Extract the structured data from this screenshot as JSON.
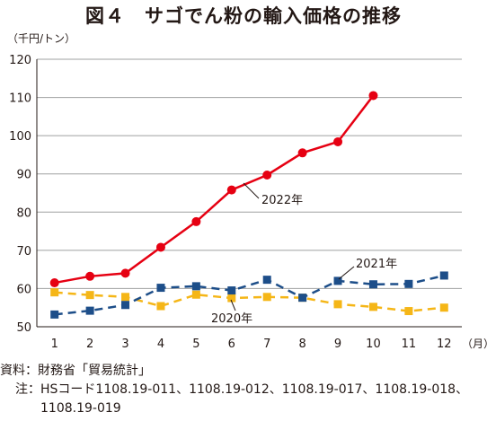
{
  "title": "図４　サゴでん粉の輸入価格の推移",
  "chart_data": {
    "type": "line",
    "y_unit": "（千円/トン）",
    "x_unit": "（月）",
    "categories": [
      "1",
      "2",
      "3",
      "4",
      "5",
      "6",
      "7",
      "8",
      "9",
      "10",
      "11",
      "12"
    ],
    "ylim": [
      50,
      120
    ],
    "yticks": [
      50,
      60,
      70,
      80,
      90,
      100,
      110,
      120
    ],
    "grid": true,
    "series": [
      {
        "name": "2022年",
        "color": "#e60012",
        "marker": "circle",
        "dash": "solid",
        "values": [
          61.5,
          63.2,
          64.0,
          70.8,
          77.5,
          85.8,
          89.7,
          95.5,
          98.4,
          110.5,
          null,
          null
        ]
      },
      {
        "name": "2021年",
        "color": "#1d4e89",
        "marker": "square",
        "dash": "dashed",
        "values": [
          53.2,
          54.2,
          55.7,
          60.2,
          60.6,
          59.5,
          62.3,
          57.6,
          62.0,
          61.1,
          61.2,
          63.4
        ]
      },
      {
        "name": "2020年",
        "color": "#f5b617",
        "marker": "square",
        "dash": "dashed",
        "values": [
          59.0,
          58.3,
          57.8,
          55.4,
          58.4,
          57.5,
          57.8,
          57.6,
          55.9,
          55.2,
          54.1,
          55.0
        ]
      }
    ]
  },
  "notes": {
    "source_label": "資料：",
    "source_text": "財務省「貿易統計」",
    "note_label": "注：",
    "note_text": "HSコード1108.19-011、1108.19-012、1108.19-017、1108.19-018、1108.19-019"
  }
}
